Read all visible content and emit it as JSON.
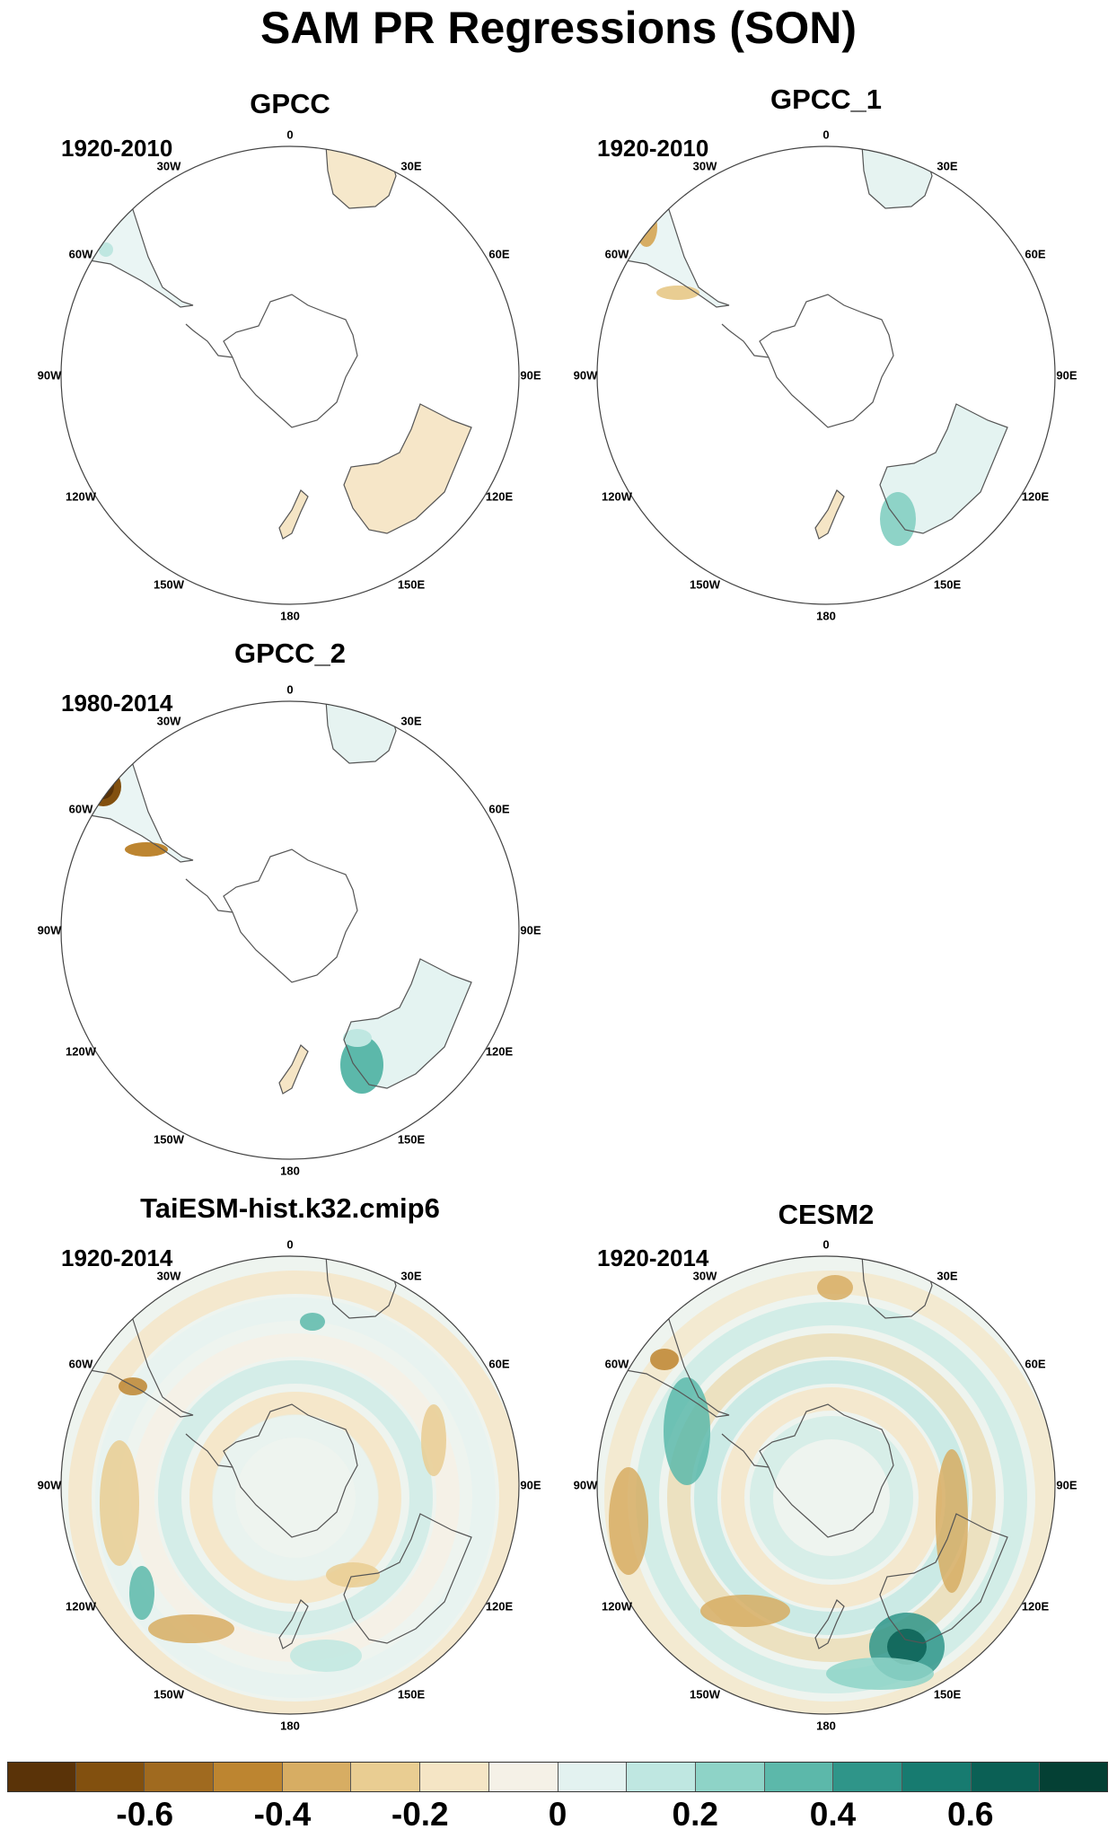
{
  "title": "SAM PR Regressions (SON)",
  "lon_labels": [
    "0",
    "30E",
    "60E",
    "90E",
    "120E",
    "150E",
    "180",
    "150W",
    "120W",
    "90W",
    "60W",
    "30W"
  ],
  "panels": [
    {
      "name": "GPCC",
      "period": "1920-2010"
    },
    {
      "name": "GPCC_1",
      "period": "1920-2010"
    },
    {
      "name": "GPCC_2",
      "period": "1980-2014"
    },
    {
      "name": "TaiESM-hist.k32.cmip6",
      "period": "1920-2014"
    },
    {
      "name": "CESM2",
      "period": "1920-2014"
    }
  ],
  "colorbar": {
    "colors": [
      "#5a3308",
      "#82500f",
      "#a06a1f",
      "#bd8530",
      "#d7ad63",
      "#e9cd92",
      "#f5e5c5",
      "#f5f1e7",
      "#e3f2f0",
      "#bfe7e1",
      "#8ed3c7",
      "#5cb8aa",
      "#2f9589",
      "#177b70",
      "#0b6055",
      "#044034"
    ],
    "tick_labels": [
      "-0.6",
      "-0.4",
      "-0.2",
      "0",
      "0.2",
      "0.4",
      "0.6"
    ]
  }
}
